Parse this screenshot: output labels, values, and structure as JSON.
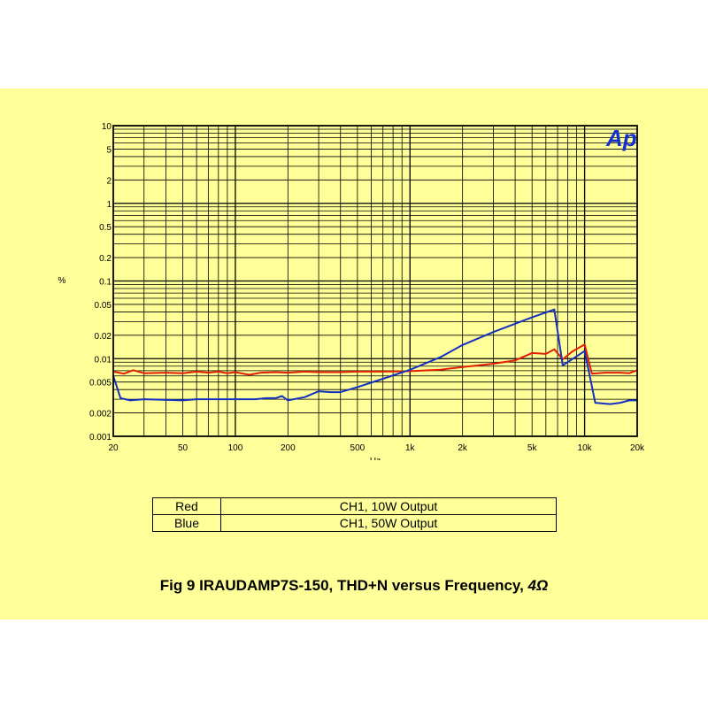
{
  "chart_data": {
    "type": "line",
    "xscale": "log",
    "yscale": "log",
    "xlim": [
      20,
      20000
    ],
    "ylim": [
      0.001,
      10
    ],
    "xlabel": "Hz",
    "ylabel": "%",
    "grid": true,
    "logo_text": "Ap",
    "x_ticks": [
      {
        "value": 20,
        "label": "20"
      },
      {
        "value": 50,
        "label": "50"
      },
      {
        "value": 100,
        "label": "100"
      },
      {
        "value": 200,
        "label": "200"
      },
      {
        "value": 500,
        "label": "500"
      },
      {
        "value": 1000,
        "label": "1k"
      },
      {
        "value": 2000,
        "label": "2k"
      },
      {
        "value": 5000,
        "label": "5k"
      },
      {
        "value": 10000,
        "label": "10k"
      },
      {
        "value": 20000,
        "label": "20k"
      }
    ],
    "y_ticks": [
      {
        "value": 10,
        "label": "10"
      },
      {
        "value": 5,
        "label": "5"
      },
      {
        "value": 2,
        "label": "2"
      },
      {
        "value": 1,
        "label": "1"
      },
      {
        "value": 0.5,
        "label": "0.5"
      },
      {
        "value": 0.2,
        "label": "0.2"
      },
      {
        "value": 0.1,
        "label": "0.1"
      },
      {
        "value": 0.05,
        "label": "0.05"
      },
      {
        "value": 0.02,
        "label": "0.02"
      },
      {
        "value": 0.01,
        "label": "0.01"
      },
      {
        "value": 0.005,
        "label": "0.005"
      },
      {
        "value": 0.002,
        "label": "0.002"
      },
      {
        "value": 0.001,
        "label": "0.001"
      }
    ],
    "series": [
      {
        "name": "Red",
        "color": "#e02000",
        "points": [
          [
            20,
            0.0068
          ],
          [
            23,
            0.0064
          ],
          [
            26,
            0.0071
          ],
          [
            30,
            0.0065
          ],
          [
            40,
            0.0066
          ],
          [
            50,
            0.0065
          ],
          [
            60,
            0.0068
          ],
          [
            70,
            0.0066
          ],
          [
            80,
            0.0068
          ],
          [
            90,
            0.0065
          ],
          [
            100,
            0.0067
          ],
          [
            120,
            0.0062
          ],
          [
            140,
            0.0066
          ],
          [
            170,
            0.0067
          ],
          [
            200,
            0.0066
          ],
          [
            250,
            0.0068
          ],
          [
            300,
            0.0067
          ],
          [
            400,
            0.0067
          ],
          [
            500,
            0.0068
          ],
          [
            700,
            0.0068
          ],
          [
            1000,
            0.0069
          ],
          [
            1500,
            0.0072
          ],
          [
            2000,
            0.0078
          ],
          [
            3000,
            0.0086
          ],
          [
            4000,
            0.0095
          ],
          [
            5000,
            0.0118
          ],
          [
            6000,
            0.0115
          ],
          [
            6700,
            0.0132
          ],
          [
            7500,
            0.0098
          ],
          [
            8500,
            0.0124
          ],
          [
            10000,
            0.0152
          ],
          [
            11000,
            0.0064
          ],
          [
            13000,
            0.0066
          ],
          [
            16000,
            0.0066
          ],
          [
            18000,
            0.0065
          ],
          [
            20000,
            0.0071
          ]
        ]
      },
      {
        "name": "Blue",
        "color": "#1530c0",
        "points": [
          [
            20,
            0.006
          ],
          [
            22,
            0.0031
          ],
          [
            25,
            0.0029
          ],
          [
            30,
            0.003
          ],
          [
            50,
            0.0029
          ],
          [
            60,
            0.003
          ],
          [
            80,
            0.003
          ],
          [
            100,
            0.003
          ],
          [
            130,
            0.003
          ],
          [
            150,
            0.0031
          ],
          [
            170,
            0.0031
          ],
          [
            185,
            0.0033
          ],
          [
            200,
            0.0029
          ],
          [
            250,
            0.0032
          ],
          [
            300,
            0.0038
          ],
          [
            350,
            0.0037
          ],
          [
            400,
            0.0037
          ],
          [
            500,
            0.0043
          ],
          [
            700,
            0.0055
          ],
          [
            1000,
            0.0072
          ],
          [
            1500,
            0.0105
          ],
          [
            2000,
            0.015
          ],
          [
            3000,
            0.022
          ],
          [
            5000,
            0.034
          ],
          [
            6700,
            0.043
          ],
          [
            7500,
            0.0082
          ],
          [
            10000,
            0.0125
          ],
          [
            11500,
            0.0027
          ],
          [
            14000,
            0.0026
          ],
          [
            16000,
            0.0027
          ],
          [
            18000,
            0.0029
          ],
          [
            20000,
            0.0029
          ]
        ]
      }
    ]
  },
  "legend": [
    {
      "color_name": "Red",
      "description": "CH1, 10W Output"
    },
    {
      "color_name": "Blue",
      "description": "CH1, 50W Output"
    }
  ],
  "caption": {
    "main": "Fig 9  IRAUDAMP7S-150, THD+N versus Frequency, ",
    "emph": "4Ω"
  }
}
